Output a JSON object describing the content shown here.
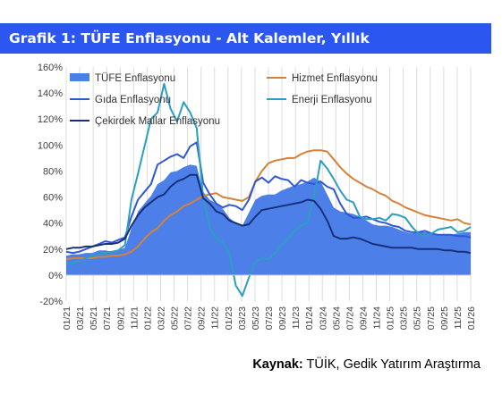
{
  "title": "Grafik 1: TÜFE Enflasyonu - Alt Kalemler, Yıllık",
  "source": {
    "label": "Kaynak:",
    "text": "TÜİK, Gedik Yatırım Araştırma"
  },
  "chart_data": {
    "type": "line",
    "title": "",
    "xlabel": "",
    "ylabel": "",
    "ylim": [
      -20,
      160
    ],
    "yticks": [
      -20,
      0,
      20,
      40,
      60,
      80,
      100,
      120,
      140,
      160
    ],
    "ytick_format": "percent",
    "x_tick_labels": [
      "01/21",
      "03/21",
      "05/21",
      "07/21",
      "09/21",
      "11/21",
      "01/22",
      "03/22",
      "05/22",
      "07/22",
      "09/22",
      "11/22",
      "01/23",
      "03/23",
      "05/23",
      "07/23",
      "09/23",
      "11/23",
      "01/24",
      "03/24",
      "05/24",
      "07/24",
      "09/24",
      "11/24",
      "01/25",
      "03/25",
      "05/25",
      "07/25",
      "09/25",
      "11/25",
      "01/26"
    ],
    "grid": "vertical",
    "legend_position": "top",
    "series": [
      {
        "name": "TÜFE Enflasyonu",
        "kind": "area",
        "color": "#4d7fe8",
        "values": [
          15,
          16,
          16,
          17,
          17,
          19,
          19,
          18,
          19,
          21,
          36,
          49,
          55,
          61,
          70,
          73,
          79,
          80,
          83,
          85,
          84,
          64,
          58,
          55,
          51,
          44,
          40,
          38,
          48,
          58,
          61,
          62,
          62,
          65,
          67,
          69,
          70,
          72,
          75,
          72,
          62,
          52,
          49,
          48,
          47,
          45,
          42,
          39,
          38,
          38,
          37,
          35,
          33,
          32,
          33,
          33,
          32,
          31,
          31,
          31,
          32,
          33,
          33
        ]
      },
      {
        "name": "Hizmet Enflasyonu",
        "kind": "line",
        "color": "#d4813a",
        "values": [
          12,
          13,
          13,
          13,
          13,
          14,
          14,
          15,
          15,
          16,
          18,
          22,
          28,
          33,
          36,
          42,
          46,
          49,
          53,
          55,
          58,
          61,
          62,
          63,
          60,
          59,
          58,
          57,
          60,
          72,
          80,
          86,
          88,
          89,
          90,
          90,
          93,
          95,
          96,
          96,
          95,
          89,
          83,
          78,
          74,
          71,
          68,
          66,
          63,
          61,
          57,
          55,
          52,
          50,
          48,
          46,
          45,
          44,
          43,
          42,
          43,
          40,
          39
        ]
      },
      {
        "name": "Gıda Enflasyonu",
        "kind": "line",
        "color": "#2f58d6",
        "values": [
          18,
          17,
          18,
          20,
          22,
          24,
          26,
          25,
          27,
          29,
          45,
          58,
          64,
          70,
          85,
          88,
          91,
          93,
          90,
          99,
          102,
          71,
          62,
          55,
          52,
          54,
          53,
          50,
          58,
          72,
          75,
          71,
          76,
          74,
          73,
          68,
          73,
          71,
          70,
          72,
          68,
          66,
          55,
          47,
          44,
          44,
          45,
          43,
          41,
          40,
          38,
          37,
          34,
          33,
          33,
          34,
          32,
          31,
          31,
          31,
          30,
          30,
          29
        ]
      },
      {
        "name": "Enerji Enflasyonu",
        "kind": "line",
        "color": "#2b9fc0",
        "values": [
          9,
          9,
          11,
          13,
          15,
          16,
          17,
          18,
          19,
          23,
          58,
          78,
          99,
          120,
          125,
          147,
          128,
          118,
          133,
          125,
          113,
          60,
          37,
          28,
          25,
          17,
          -8,
          -16,
          -2,
          10,
          13,
          12,
          17,
          23,
          28,
          34,
          38,
          40,
          60,
          88,
          82,
          74,
          65,
          58,
          56,
          45,
          43,
          43,
          44,
          42,
          47,
          46,
          44,
          37,
          32,
          30,
          32,
          35,
          36,
          37,
          33,
          34,
          37
        ]
      },
      {
        "name": "Çekirdek Mallar Enflasyonu",
        "kind": "line",
        "color": "#17307a",
        "values": [
          20,
          21,
          21,
          22,
          22,
          23,
          24,
          24,
          25,
          28,
          38,
          46,
          52,
          56,
          60,
          62,
          68,
          72,
          74,
          77,
          77,
          59,
          55,
          49,
          47,
          42,
          40,
          38,
          39,
          45,
          50,
          51,
          52,
          53,
          54,
          55,
          56,
          58,
          57,
          51,
          42,
          30,
          28,
          28,
          29,
          28,
          26,
          24,
          23,
          22,
          21,
          21,
          21,
          21,
          20,
          20,
          20,
          20,
          19,
          19,
          18,
          18,
          17
        ]
      }
    ]
  }
}
